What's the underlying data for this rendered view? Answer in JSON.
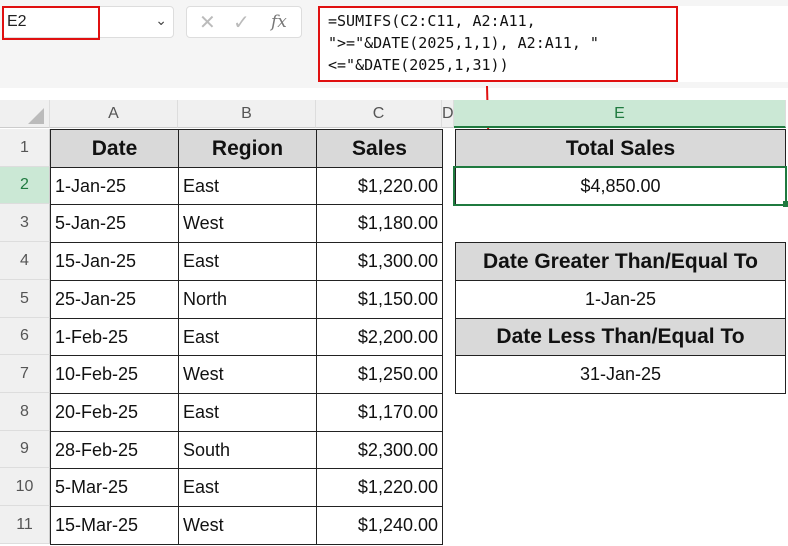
{
  "name_box": "E2",
  "formula": "=SUMIFS(C2:C11, A2:A11,\n\">=\"&DATE(2025,1,1), A2:A11, \"\n<=\"&DATE(2025,1,31))",
  "columns": [
    "A",
    "B",
    "C",
    "D",
    "E"
  ],
  "rows": [
    "1",
    "2",
    "3",
    "4",
    "5",
    "6",
    "7",
    "8",
    "9",
    "10",
    "11"
  ],
  "headers": [
    "Date",
    "Region",
    "Sales"
  ],
  "data": [
    [
      "1-Jan-25",
      "East",
      "$1,220.00"
    ],
    [
      "5-Jan-25",
      "West",
      "$1,180.00"
    ],
    [
      "15-Jan-25",
      "East",
      "$1,300.00"
    ],
    [
      "25-Jan-25",
      "North",
      "$1,150.00"
    ],
    [
      "1-Feb-25",
      "East",
      "$2,200.00"
    ],
    [
      "10-Feb-25",
      "West",
      "$1,250.00"
    ],
    [
      "20-Feb-25",
      "East",
      "$1,170.00"
    ],
    [
      "28-Feb-25",
      "South",
      "$2,300.00"
    ],
    [
      "5-Mar-25",
      "East",
      "$1,220.00"
    ],
    [
      "15-Mar-25",
      "West",
      "$1,240.00"
    ]
  ],
  "summary": {
    "total_label": "Total Sales",
    "total_value": "$4,850.00",
    "gte_label": "Date Greater Than/Equal To",
    "gte_value": "1-Jan-25",
    "lte_label": "Date Less Than/Equal To",
    "lte_value": "31-Jan-25"
  },
  "colors": {
    "highlight": "#e01010",
    "selection": "#1f7a3f"
  }
}
